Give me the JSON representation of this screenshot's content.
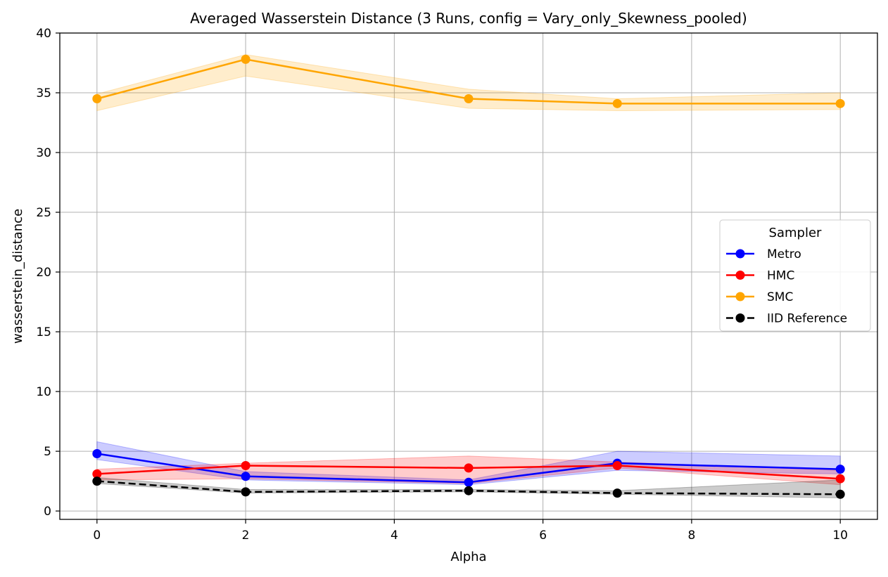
{
  "chart_data": {
    "type": "line",
    "title": "Averaged Wasserstein Distance (3 Runs, config = Vary_only_Skewness_pooled)",
    "xlabel": "Alpha",
    "ylabel": "wasserstein_distance",
    "xlim": [
      -0.5,
      10.5
    ],
    "ylim": [
      -0.7,
      40
    ],
    "xticks": [
      0,
      2,
      4,
      6,
      8,
      10
    ],
    "yticks": [
      0,
      5,
      10,
      15,
      20,
      25,
      30,
      35,
      40
    ],
    "grid": true,
    "legend": {
      "title": "Sampler",
      "placement": "center-right"
    },
    "x": [
      0,
      2,
      5,
      7,
      10
    ],
    "series": [
      {
        "name": "Metro",
        "color": "#0000ff",
        "dashed": false,
        "values": [
          4.8,
          2.9,
          2.4,
          4.0,
          3.5
        ],
        "band_low": [
          4.3,
          2.6,
          2.2,
          3.4,
          3.1
        ],
        "band_high": [
          5.8,
          3.3,
          2.6,
          5.0,
          4.6
        ]
      },
      {
        "name": "HMC",
        "color": "#ff0000",
        "dashed": false,
        "values": [
          3.1,
          3.8,
          3.6,
          3.8,
          2.7
        ],
        "band_low": [
          2.6,
          2.7,
          2.3,
          3.6,
          2.2
        ],
        "band_high": [
          3.5,
          4.0,
          4.6,
          4.1,
          3.4
        ]
      },
      {
        "name": "SMC",
        "color": "#ffa500",
        "dashed": false,
        "values": [
          34.5,
          37.8,
          34.5,
          34.1,
          34.1
        ],
        "band_low": [
          33.5,
          36.4,
          33.7,
          33.5,
          33.6
        ],
        "band_high": [
          34.9,
          38.2,
          35.3,
          34.5,
          35.0
        ]
      },
      {
        "name": "IID Reference",
        "color": "#000000",
        "dashed": true,
        "values": [
          2.5,
          1.6,
          1.7,
          1.5,
          1.4
        ],
        "band_low": [
          2.3,
          1.5,
          1.6,
          1.4,
          1.1
        ],
        "band_high": [
          2.8,
          1.8,
          1.8,
          1.7,
          2.6
        ]
      }
    ]
  }
}
